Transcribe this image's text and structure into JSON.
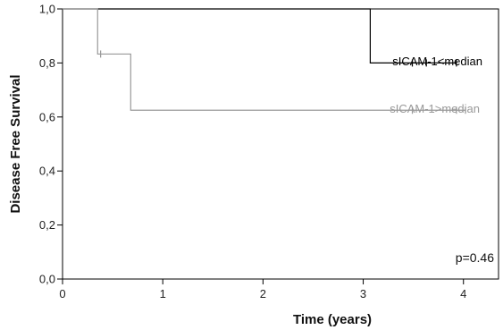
{
  "chart_data": {
    "type": "line",
    "step": true,
    "xlabel": "Time (years)",
    "ylabel": "Disease Free Survival",
    "xlim": [
      0,
      4.35
    ],
    "ylim": [
      0,
      1
    ],
    "xticks": [
      0,
      1,
      2,
      3,
      4
    ],
    "xtick_labels": [
      "0",
      "1",
      "2",
      "3",
      "4"
    ],
    "yticks": [
      0,
      0.2,
      0.4,
      0.6,
      0.8,
      1.0
    ],
    "ytick_labels": [
      "0,0",
      "0,2",
      "0,4",
      "0,6",
      "0,8",
      "1,0"
    ],
    "grid": false,
    "series": [
      {
        "name": "sICAM-1<median",
        "color": "#000000",
        "points": [
          [
            0,
            1.0
          ],
          [
            3.07,
            1.0
          ],
          [
            3.07,
            0.8
          ],
          [
            3.93,
            0.8
          ]
        ],
        "censored": [
          [
            3.49,
            0.8
          ],
          [
            3.63,
            0.8
          ],
          [
            3.93,
            0.8
          ]
        ]
      },
      {
        "name": "sICAM-1>median",
        "color": "#999999",
        "points": [
          [
            0,
            1.0
          ],
          [
            0.35,
            1.0
          ],
          [
            0.35,
            0.833
          ],
          [
            0.68,
            0.833
          ],
          [
            0.68,
            0.625
          ],
          [
            4.02,
            0.625
          ]
        ],
        "censored": [
          [
            0.38,
            0.833
          ],
          [
            3.49,
            0.625
          ],
          [
            3.93,
            0.625
          ],
          [
            4.02,
            0.625
          ]
        ]
      }
    ],
    "annotations": [
      {
        "text": "p=0.46"
      }
    ]
  }
}
